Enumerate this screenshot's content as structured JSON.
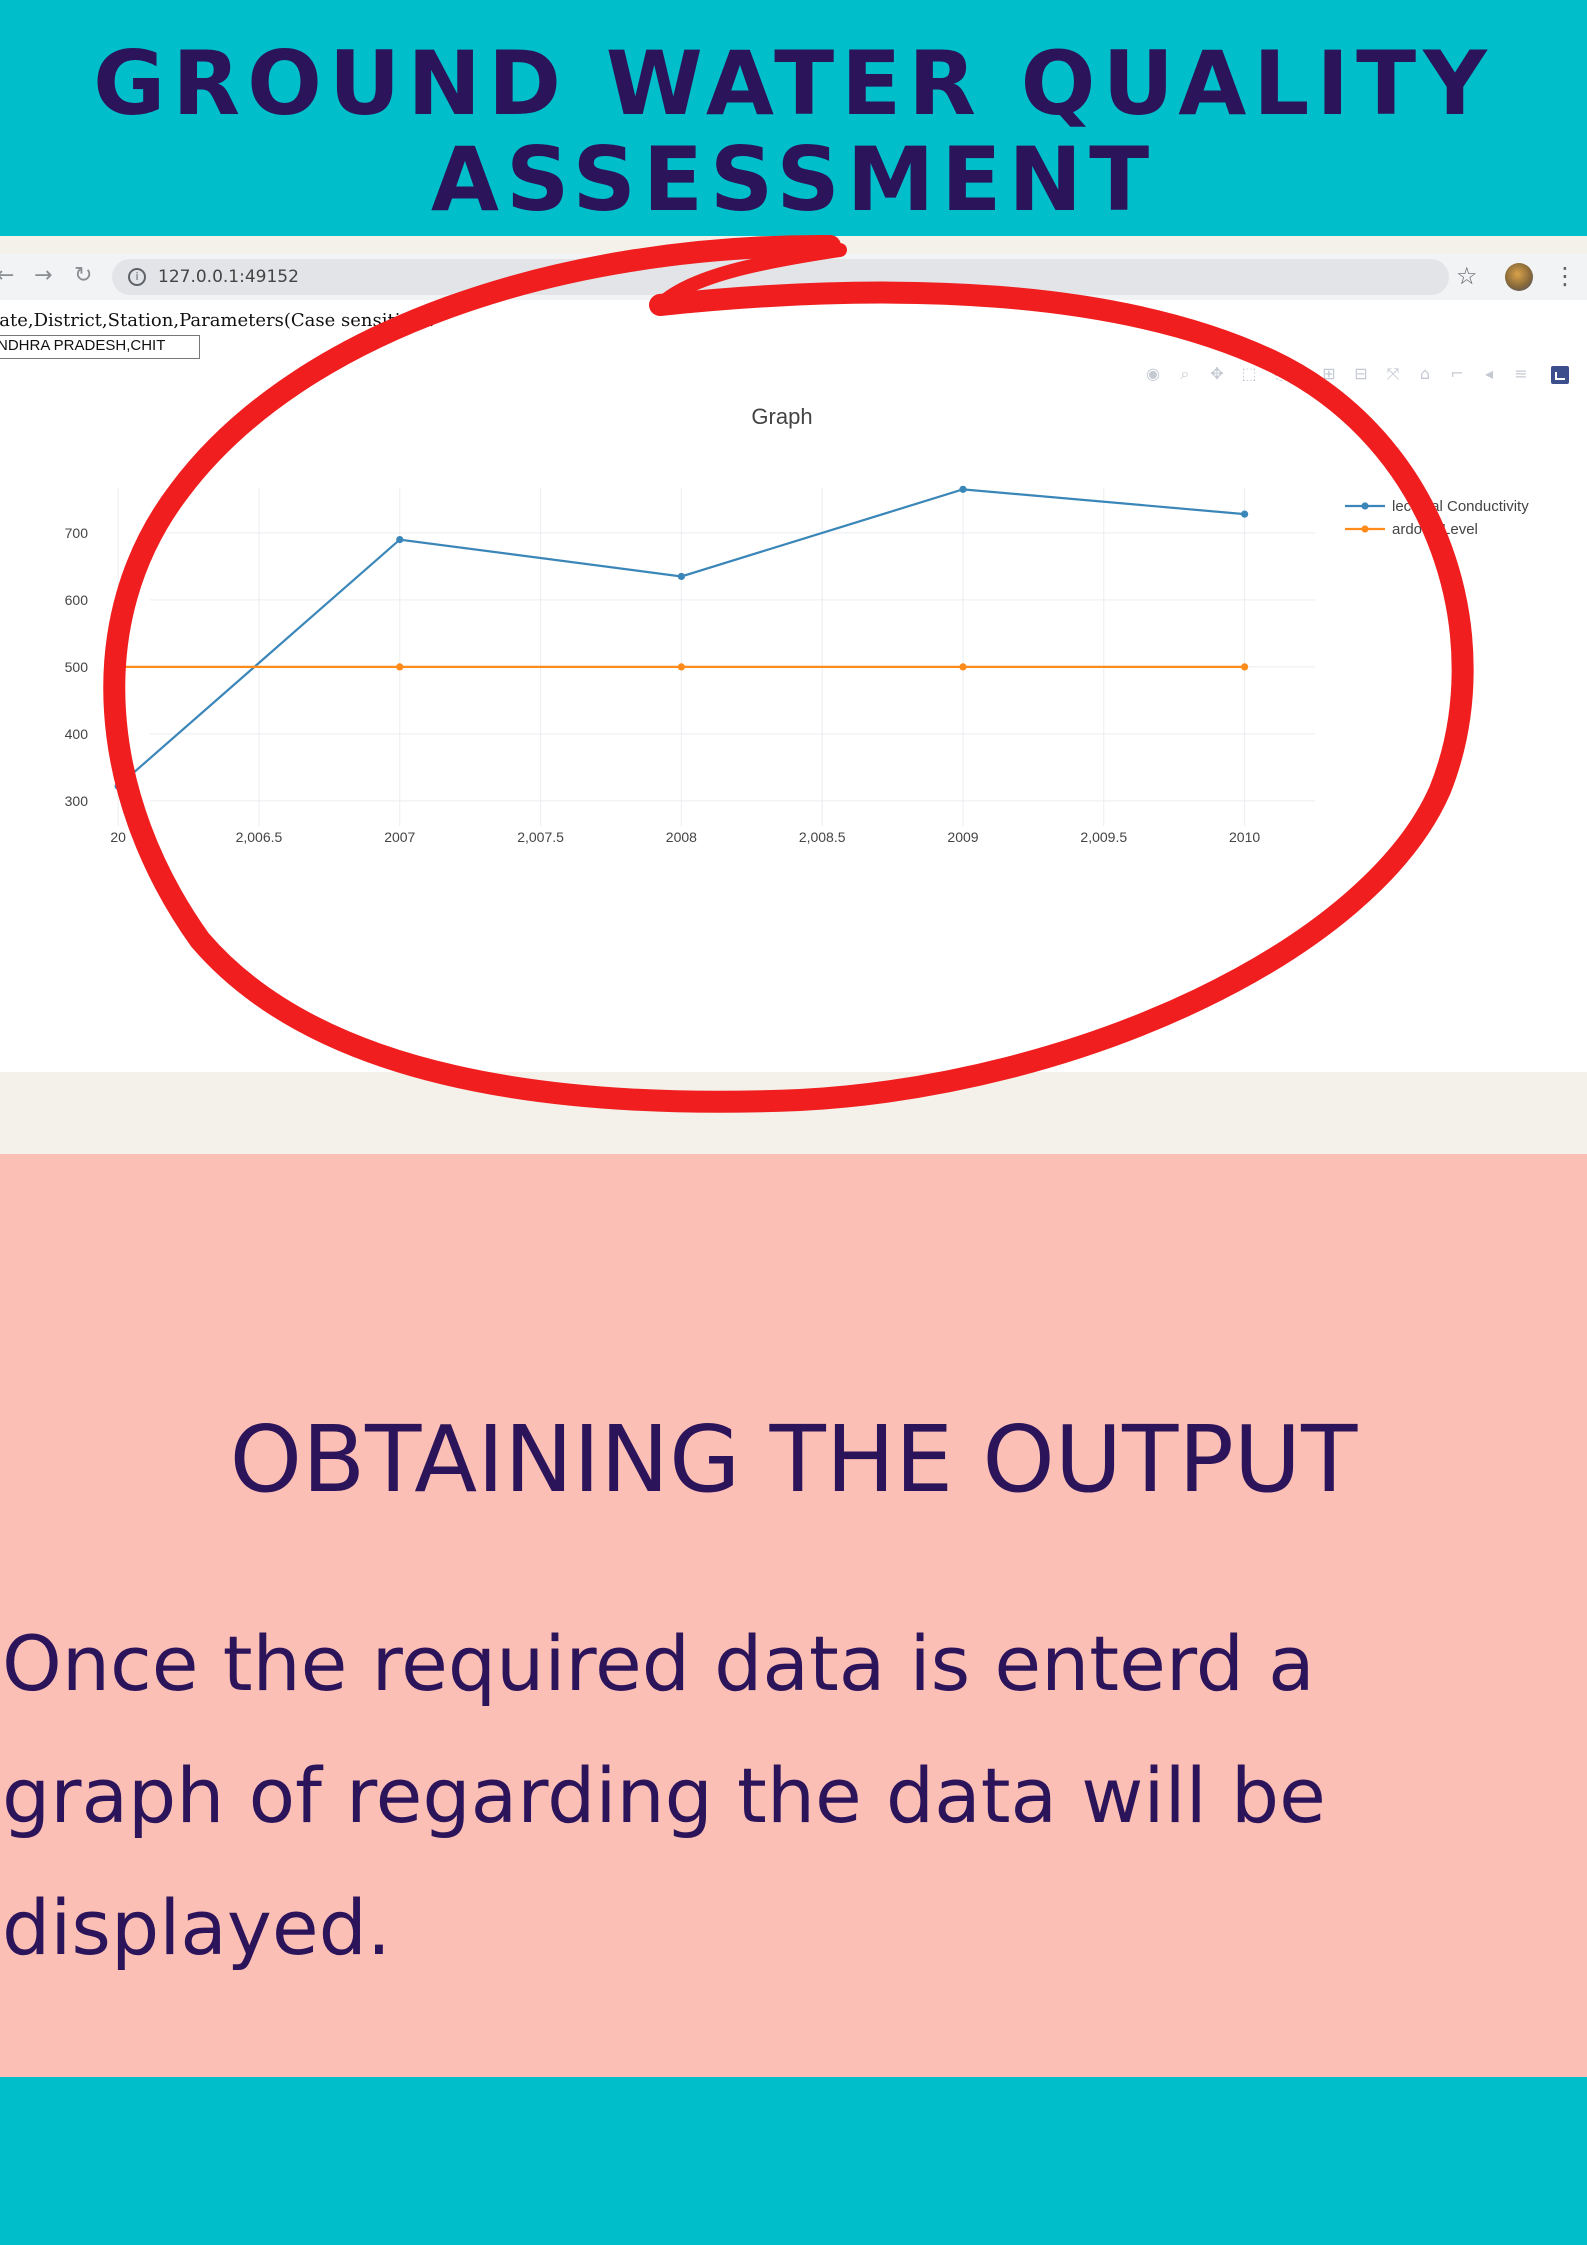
{
  "poster": {
    "title": "GROUND WATER QUALITY\nASSESSMENT",
    "colors": {
      "banner": "#00bfcb",
      "text": "#2b145a",
      "salmon": "#fcbfb5",
      "highlight": "#f01e1e"
    }
  },
  "browser": {
    "url": "127.0.0.1:49152",
    "icons": [
      "back-arrow-icon",
      "forward-arrow-icon",
      "reload-icon",
      "info-icon",
      "star-icon",
      "avatar",
      "kebab-menu-icon"
    ]
  },
  "form": {
    "label": "tate,District,Station,Parameters(Case sensitive):",
    "input_value": "NDHRA PRADESH,CHIT"
  },
  "chart_data": {
    "type": "line",
    "title": "Graph",
    "xlabel": "",
    "ylabel": "",
    "x_tick_labels": [
      "20",
      "2,006.5",
      "2007",
      "2,007.5",
      "2008",
      "2,008.5",
      "2009",
      "2,009.5",
      "2010"
    ],
    "y_tick_labels": [
      "300",
      "400",
      "500",
      "600",
      "700"
    ],
    "xlim": [
      2005.9,
      2010.25
    ],
    "ylim": [
      270,
      770
    ],
    "grid": true,
    "legend_position": "right",
    "series": [
      {
        "name": "lectrical Conductivity",
        "color": "#3a86b8",
        "x": [
          2006,
          2007,
          2008,
          2009,
          2010
        ],
        "y": [
          322,
          690,
          635,
          765,
          728
        ]
      },
      {
        "name": "ardous Level",
        "color": "#ff8c1a",
        "x": [
          2006,
          2007,
          2008,
          2009,
          2010
        ],
        "y": [
          500,
          500,
          500,
          500,
          500
        ]
      }
    ]
  },
  "section": {
    "heading": "OBTAINING THE OUTPUT",
    "body": "Once the required data is enterd a graph of regarding the data will be displayed."
  }
}
